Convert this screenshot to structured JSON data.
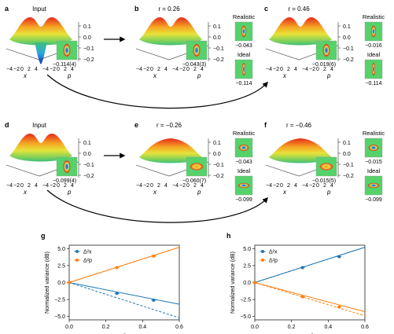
{
  "panels": [
    {
      "letter": "a",
      "title": "Input",
      "inset_value": "−0.114(4)"
    },
    {
      "letter": "b",
      "title": "r = 0.26",
      "inset_value": "−0.043(3)",
      "realistic_label": "Realistic",
      "realistic_value": "−0.043",
      "ideal_label": "Ideal",
      "ideal_value": "−0.114"
    },
    {
      "letter": "c",
      "title": "r = 0.46",
      "inset_value": "−0.019(6)",
      "realistic_label": "Realistic",
      "realistic_value": "−0.016",
      "ideal_label": "Ideal",
      "ideal_value": "−0.114"
    },
    {
      "letter": "d",
      "title": "Input",
      "inset_value": "−0.099(4)"
    },
    {
      "letter": "e",
      "title": "r = −0.26",
      "inset_value": "−0.060(7)",
      "realistic_label": "Realistic",
      "realistic_value": "−0.043",
      "ideal_label": "Ideal",
      "ideal_value": "−0.099"
    },
    {
      "letter": "f",
      "title": "r = −0.46",
      "inset_value": "−0.015(5)",
      "realistic_label": "Realistic",
      "realistic_value": "−0.015",
      "ideal_label": "Ideal",
      "ideal_value": "−0.099"
    }
  ],
  "wigner_axes": {
    "z_ticks": [
      "0.1",
      "0.0",
      "−0.1",
      "−0.2"
    ],
    "x_ticks": [
      "−4",
      "−2",
      "0",
      "2",
      "4"
    ],
    "p_ticks": [
      "−4",
      "−2",
      "0",
      "2",
      "4"
    ],
    "x_label": "x",
    "p_label": "p"
  },
  "chart_data": [
    {
      "panel": "g",
      "type": "line",
      "xlabel": "r",
      "ylabel": "Normalized variance (dB)",
      "xlim": [
        0,
        0.6
      ],
      "ylim": [
        -5.5,
        5.5
      ],
      "xticks": [
        "0.0",
        "0.2",
        "0.4",
        "0.6"
      ],
      "yticks": [
        "−5.0",
        "−2.5",
        "0.0",
        "2.5",
        "5.0"
      ],
      "legend_position": "top-left",
      "series": [
        {
          "name": "Δ²x",
          "color": "#1f77b4",
          "points": [
            {
              "x": 0.0,
              "y": 0.0
            },
            {
              "x": 0.26,
              "y": -1.6
            },
            {
              "x": 0.46,
              "y": -2.6
            }
          ],
          "fit_line": [
            [
              0,
              0
            ],
            [
              0.6,
              -3.2
            ]
          ],
          "dashed_line": [
            [
              0,
              0
            ],
            [
              0.6,
              -5.2
            ]
          ]
        },
        {
          "name": "Δ²p",
          "color": "#ff7f0e",
          "points": [
            {
              "x": 0.0,
              "y": 0.0
            },
            {
              "x": 0.26,
              "y": 2.2
            },
            {
              "x": 0.46,
              "y": 3.9
            }
          ],
          "fit_line": [
            [
              0,
              0
            ],
            [
              0.6,
              5.2
            ]
          ],
          "dashed_line": [
            [
              0,
              0
            ],
            [
              0.6,
              5.2
            ]
          ]
        }
      ]
    },
    {
      "panel": "h",
      "type": "line",
      "xlabel": "−r",
      "ylabel": "Normalized variance (dB)",
      "xlim": [
        0,
        0.6
      ],
      "ylim": [
        -5.5,
        5.5
      ],
      "xticks": [
        "0.0",
        "0.2",
        "0.4",
        "0.6"
      ],
      "yticks": [
        "−5.0",
        "−2.5",
        "0.0",
        "2.5",
        "5.0"
      ],
      "legend_position": "top-left",
      "series": [
        {
          "name": "Δ²x",
          "color": "#1f77b4",
          "points": [
            {
              "x": 0.0,
              "y": 0.0
            },
            {
              "x": 0.26,
              "y": 2.2
            },
            {
              "x": 0.46,
              "y": 3.8
            }
          ],
          "fit_line": [
            [
              0,
              0
            ],
            [
              0.6,
              5.2
            ]
          ],
          "dashed_line": [
            [
              0,
              0
            ],
            [
              0.6,
              5.2
            ]
          ]
        },
        {
          "name": "Δ²p",
          "color": "#ff7f0e",
          "points": [
            {
              "x": 0.0,
              "y": 0.0
            },
            {
              "x": 0.26,
              "y": -2.1
            },
            {
              "x": 0.46,
              "y": -3.6
            }
          ],
          "fit_line": [
            [
              0,
              0
            ],
            [
              0.6,
              -4.3
            ]
          ],
          "dashed_line": [
            [
              0,
              0
            ],
            [
              0.6,
              -4.9
            ]
          ]
        }
      ]
    }
  ]
}
